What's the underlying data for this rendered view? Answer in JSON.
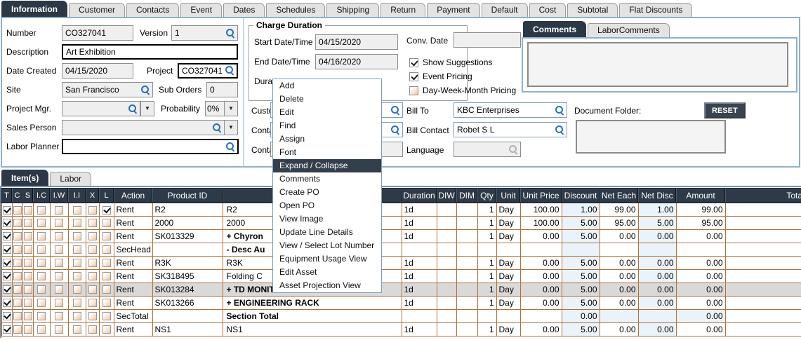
{
  "colors": {
    "accent_dark": "#2c3845",
    "table_border": "#b0703d",
    "highlight_row": "#d9d9d9",
    "magnifier_blue": "#2a6fbd",
    "pale_blue": "#eaf3f9"
  },
  "tabs": {
    "labels": [
      "Information",
      "Customer",
      "Contacts",
      "Event",
      "Dates",
      "Schedules",
      "Shipping",
      "Return",
      "Payment",
      "Default",
      "Cost",
      "Subtotal",
      "Flat Discounts"
    ],
    "active": "Information"
  },
  "form": {
    "fields": {
      "number": {
        "label": "Number",
        "value": "CO327041"
      },
      "version": {
        "label": "Version",
        "value": "1"
      },
      "description": {
        "label": "Description",
        "value": "Art Exhibition"
      },
      "date_created": {
        "label": "Date Created",
        "value": "04/15/2020"
      },
      "project": {
        "label": "Project",
        "value": "CO327041"
      },
      "site": {
        "label": "Site",
        "value": "San Francisco"
      },
      "sub_orders": {
        "label": "Sub Orders",
        "value": "0"
      },
      "project_mgr": {
        "label": "Project Mgr.",
        "value": ""
      },
      "probability": {
        "label": "Probability",
        "value": "0%"
      },
      "sales_person": {
        "label": "Sales Person",
        "value": ""
      },
      "labor_planner": {
        "label": "Labor Planner",
        "value": ""
      }
    }
  },
  "charge_duration": {
    "title": "Charge Duration",
    "start_label": "Start Date/Time",
    "start_value": "04/15/2020",
    "end_label": "End Date/Time",
    "end_value": "04/16/2020",
    "duration_label_partial": "Dura"
  },
  "hidden_fields": {
    "customer_label_partial": "Custo",
    "contact1_label_partial": "Conta",
    "contact2_label_partial": "Conta"
  },
  "right_form": {
    "conv_date_label": "Conv. Date",
    "conv_date_value": "",
    "checkboxes": [
      {
        "label": "Show Suggestions",
        "checked": true
      },
      {
        "label": "Event Pricing",
        "checked": true
      },
      {
        "label": "Day-Week-Month Pricing",
        "checked": false
      }
    ],
    "bill_to_label": "Bill To",
    "bill_to_value": "KBC Enterprises",
    "bill_contact_label": "Bill Contact",
    "bill_contact_value": "Robet S L",
    "language_label": "Language",
    "language_value": ""
  },
  "comments_panel": {
    "tab_labels": [
      "Comments",
      "LaborComments"
    ],
    "active": "Comments",
    "text": ""
  },
  "document_folder": {
    "label": "Document Folder:",
    "reset_label": "RESET",
    "value": ""
  },
  "context_menu": {
    "items": [
      "Add",
      "Delete",
      "Edit",
      "Find",
      "Assign",
      "Font",
      "Expand / Collapse",
      "Comments",
      "Create PO",
      "Open PO",
      "View Image",
      "Update Line Details",
      "View / Select Lot Number",
      "Equipment Usage View",
      "Edit Asset",
      "Asset Projection View"
    ],
    "highlighted": "Expand / Collapse"
  },
  "items_tabs": {
    "labels": [
      "Item(s)",
      "Labor"
    ],
    "active": "Item(s)"
  },
  "table": {
    "checkbox_columns": [
      "T",
      "C",
      "S",
      "I.C",
      "I.W",
      "I.I",
      "X",
      "L"
    ],
    "columns": [
      "Action",
      "Product ID",
      "",
      "Duration",
      "DIW",
      "DIM",
      "Qty",
      "Unit",
      "Unit Price",
      "Discount",
      "Net Each",
      "Net Disc",
      "Amount",
      "Total"
    ],
    "rows": [
      {
        "checks": [
          true,
          false,
          false,
          false,
          false,
          false,
          false,
          true
        ],
        "action": "Rent",
        "product_id": "R2",
        "description": "R2",
        "desc_bold": false,
        "duration": "1d",
        "diw": "",
        "dim": "",
        "qty": "1",
        "unit": "Day",
        "unit_price": "100.00",
        "discount": "1.00",
        "net_each": "99.00",
        "net_disc": "1.00",
        "amount": "99.00",
        "total": "",
        "highlighted": false
      },
      {
        "checks": [
          true,
          false,
          false,
          false,
          false,
          false,
          false,
          false
        ],
        "action": "Rent",
        "product_id": "2000",
        "description": "2000",
        "desc_bold": false,
        "duration": "1d",
        "diw": "",
        "dim": "",
        "qty": "1",
        "unit": "Day",
        "unit_price": "100.00",
        "discount": "5.00",
        "net_each": "95.00",
        "net_disc": "5.00",
        "amount": "95.00",
        "total": "",
        "highlighted": false
      },
      {
        "checks": [
          true,
          false,
          false,
          false,
          false,
          false,
          false,
          false
        ],
        "action": "Rent",
        "product_id": "SK013329",
        "description": "+  Chyron",
        "desc_bold": true,
        "duration": "1d",
        "diw": "",
        "dim": "",
        "qty": "1",
        "unit": "Day",
        "unit_price": "0.00",
        "discount": "5.00",
        "net_each": "0.00",
        "net_disc": "0.00",
        "amount": "0.00",
        "total": "",
        "highlighted": false
      },
      {
        "checks": [
          true,
          false,
          false,
          false,
          false,
          false,
          false,
          false
        ],
        "action": "SecHead",
        "product_id": "",
        "description": "-  Desc Au",
        "desc_bold": true,
        "duration": "",
        "diw": "",
        "dim": "",
        "qty": "",
        "unit": "",
        "unit_price": "",
        "discount": "",
        "net_each": "",
        "net_disc": "",
        "amount": "",
        "total": "",
        "highlighted": false
      },
      {
        "checks": [
          true,
          false,
          false,
          false,
          false,
          false,
          false,
          false
        ],
        "action": "Rent",
        "product_id": "R3K",
        "description": "R3K",
        "desc_bold": false,
        "duration": "1d",
        "diw": "",
        "dim": "",
        "qty": "1",
        "unit": "Day",
        "unit_price": "0.00",
        "discount": "5.00",
        "net_each": "0.00",
        "net_disc": "0.00",
        "amount": "0.00",
        "total": "",
        "highlighted": false
      },
      {
        "checks": [
          true,
          false,
          false,
          false,
          false,
          false,
          false,
          false
        ],
        "action": "Rent",
        "product_id": "SK318495",
        "description": "Folding C",
        "desc_bold": false,
        "duration": "1d",
        "diw": "",
        "dim": "",
        "qty": "1",
        "unit": "Day",
        "unit_price": "0.00",
        "discount": "5.00",
        "net_each": "0.00",
        "net_disc": "0.00",
        "amount": "0.00",
        "total": "",
        "highlighted": false
      },
      {
        "checks": [
          true,
          false,
          false,
          false,
          false,
          false,
          false,
          false
        ],
        "action": "Rent",
        "product_id": "SK013284",
        "description": "+  TD MONITOR RACKS",
        "desc_bold": true,
        "duration": "1d",
        "diw": "",
        "dim": "",
        "qty": "1",
        "unit": "Day",
        "unit_price": "0.00",
        "discount": "5.00",
        "net_each": "0.00",
        "net_disc": "0.00",
        "amount": "0.00",
        "total": "",
        "highlighted": true
      },
      {
        "checks": [
          true,
          false,
          false,
          false,
          false,
          false,
          false,
          false
        ],
        "action": "Rent",
        "product_id": "SK013266",
        "description": "+  ENGINEERING RACK",
        "desc_bold": true,
        "duration": "1d",
        "diw": "",
        "dim": "",
        "qty": "1",
        "unit": "Day",
        "unit_price": "0.00",
        "discount": "5.00",
        "net_each": "0.00",
        "net_disc": "0.00",
        "amount": "0.00",
        "total": "",
        "highlighted": false
      },
      {
        "checks": [
          true,
          false,
          false,
          false,
          false,
          false,
          false,
          false
        ],
        "action": "SecTotal",
        "product_id": "",
        "description": "Section Total",
        "desc_bold": true,
        "duration": "",
        "diw": "",
        "dim": "",
        "qty": "",
        "unit": "",
        "unit_price": "",
        "discount": "0.00",
        "net_each": "",
        "net_disc": "",
        "amount": "0.00",
        "total": "",
        "highlighted": false
      },
      {
        "checks": [
          true,
          false,
          false,
          false,
          false,
          false,
          false,
          false
        ],
        "action": "Rent",
        "product_id": "NS1",
        "description": "NS1",
        "desc_bold": false,
        "duration": "1d",
        "diw": "",
        "dim": "",
        "qty": "1",
        "unit": "Day",
        "unit_price": "0.00",
        "discount": "5.00",
        "net_each": "0.00",
        "net_disc": "0.00",
        "amount": "0.00",
        "total": "",
        "highlighted": false
      }
    ]
  }
}
